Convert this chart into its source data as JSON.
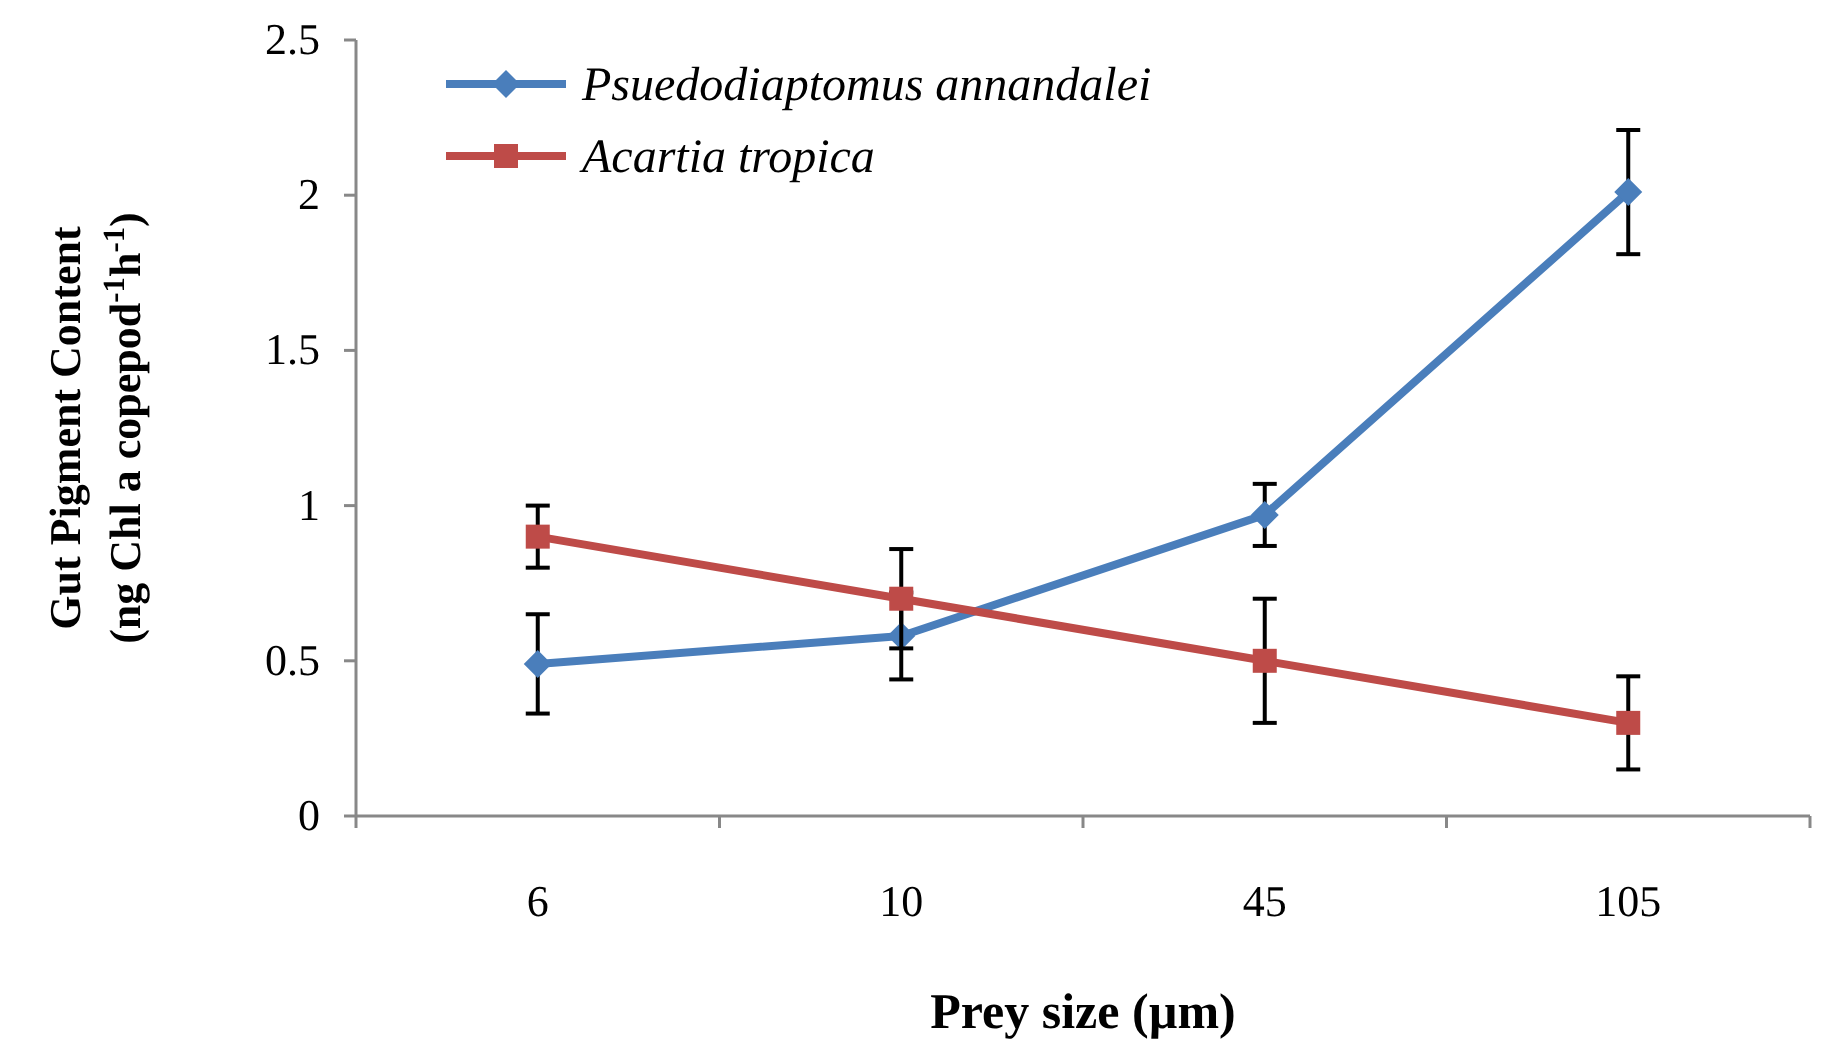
{
  "chart_data": {
    "type": "line",
    "xlabel": "Prey size (µm)",
    "ylabel": "Gut Pigment Content\n(ng Chl a copepod$^{-1}$h$^{-1}$)",
    "categories": [
      "6",
      "10",
      "45",
      "105"
    ],
    "series": [
      {
        "name": "Psuedodiaptomus annandalei",
        "color": "#4a7ebb",
        "marker": "diamond",
        "values": [
          0.49,
          0.58,
          0.97,
          2.01
        ],
        "errors": [
          0.16,
          0.14,
          0.1,
          0.2
        ]
      },
      {
        "name": "Acartia tropica",
        "color": "#be4b48",
        "marker": "square",
        "values": [
          0.9,
          0.7,
          0.5,
          0.3
        ],
        "errors": [
          0.1,
          0.16,
          0.2,
          0.15
        ]
      }
    ],
    "ylim": [
      0,
      2.5
    ],
    "yticks": [
      0,
      0.5,
      1,
      1.5,
      2,
      2.5
    ],
    "grid": false,
    "legend": "top left",
    "line_style": "solid"
  }
}
